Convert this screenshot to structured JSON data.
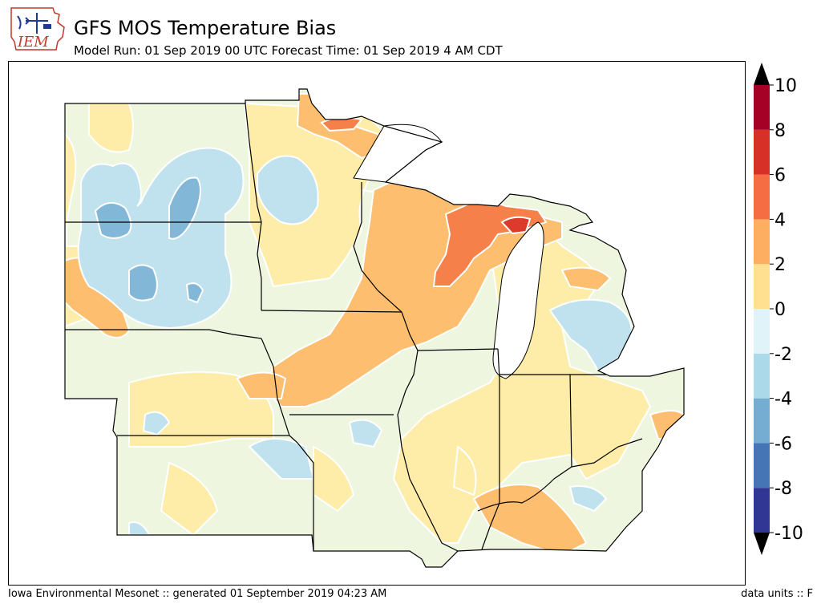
{
  "header": {
    "title": "GFS MOS Temperature Bias",
    "subtitle": "Model Run: 01 Sep 2019 00 UTC Forecast Time: 01 Sep 2019 4 AM CDT",
    "logo_text": "IEM"
  },
  "colorbar": {
    "levels": [
      "10",
      "8",
      "6",
      "4",
      "2",
      "0",
      "-2",
      "-4",
      "-6",
      "-8",
      "-10"
    ],
    "bins": [
      {
        "color": "#313695"
      },
      {
        "color": "#4575b4"
      },
      {
        "color": "#74add1"
      },
      {
        "color": "#abd9e9"
      },
      {
        "color": "#e0f3f8"
      },
      {
        "color": "#fee090"
      },
      {
        "color": "#fdae61"
      },
      {
        "color": "#f46d43"
      },
      {
        "color": "#d73027"
      },
      {
        "color": "#a50026"
      }
    ],
    "under_color": "#000000",
    "over_color": "#000000"
  },
  "map": {
    "region": "Upper Midwest / Great Lakes",
    "fill_colors": {
      "neg2_0": "#eef6e0",
      "neg4_neg2": "#bfe2ee",
      "neg6_neg4": "#82b7d8",
      "pos0_2": "#fdeda8",
      "pos2_4": "#fdbe6f",
      "pos4_6": "#f6804a",
      "pos6_8": "#dc3b2c",
      "water": "#ffffff",
      "border": "#000000",
      "contour": "#ffffff"
    }
  },
  "footer": {
    "left": "Iowa Environmental Mesonet :: generated 01 September 2019 04:23 AM",
    "right": "data units :: F"
  }
}
